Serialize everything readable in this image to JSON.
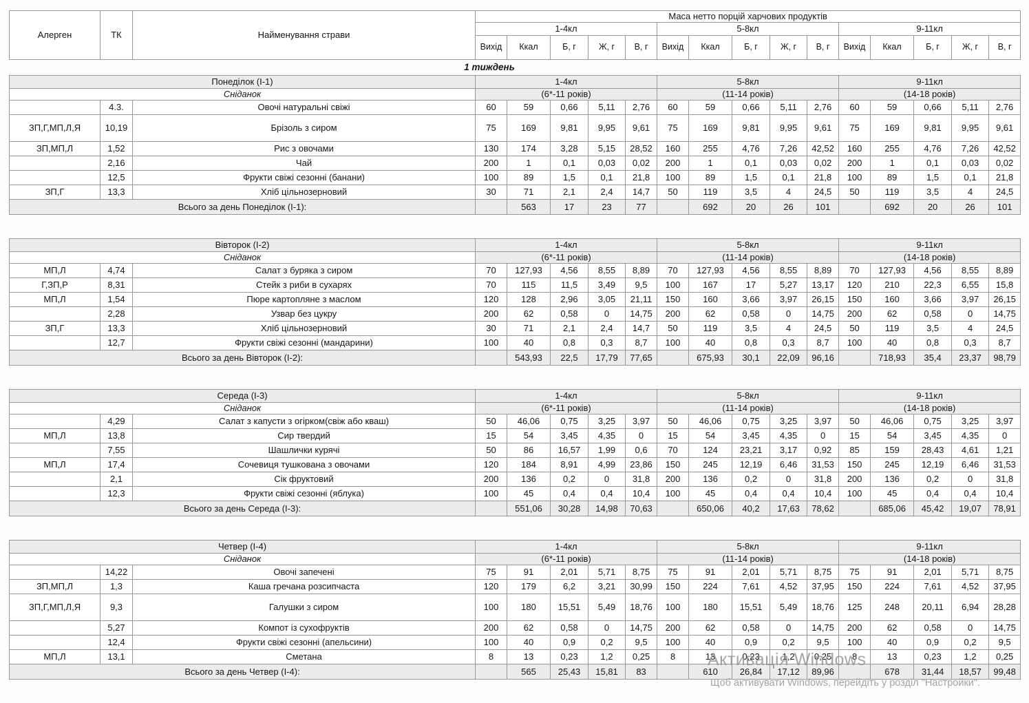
{
  "table": {
    "header": {
      "allergen": "Алерген",
      "tk": "ТК",
      "dish": "Найменування страви",
      "mass_title": "Маса нетто порцій харчових продуктів",
      "week": "1 тиждень",
      "groups": [
        {
          "klass": "1-4кл",
          "age": "(6*-11 років)"
        },
        {
          "klass": "5-8кл",
          "age": "(11-14 років)"
        },
        {
          "klass": "9-11кл",
          "age": "(14-18 років)"
        }
      ],
      "cols": [
        "Вихід",
        "Ккал",
        "Б, г",
        "Ж, г",
        "В, г"
      ]
    },
    "days": [
      {
        "name": "Понеділок (I-1)",
        "meal": "Сніданок",
        "total_label": "Всього за день Понеділок (I-1):",
        "rows": [
          {
            "a": "",
            "tk": "4.3.",
            "dish": "Овочі  натуральні свіжі",
            "g": [
              [
                "60",
                "59",
                "0,66",
                "5,11",
                "2,76"
              ],
              [
                "60",
                "59",
                "0,66",
                "5,11",
                "2,76"
              ],
              [
                "60",
                "59",
                "0,66",
                "5,11",
                "2,76"
              ]
            ]
          },
          {
            "a": "ЗП,Г,МП,Л,Я",
            "tk": "10,19",
            "dish": "Брізоль з сиром",
            "tall": true,
            "g": [
              [
                "75",
                "169",
                "9,81",
                "9,95",
                "9,61"
              ],
              [
                "75",
                "169",
                "9,81",
                "9,95",
                "9,61"
              ],
              [
                "75",
                "169",
                "9,81",
                "9,95",
                "9,61"
              ]
            ]
          },
          {
            "a": "ЗП,МП,Л",
            "tk": "1,52",
            "dish": "Рис з овочами",
            "g": [
              [
                "130",
                "174",
                "3,28",
                "5,15",
                "28,52"
              ],
              [
                "160",
                "255",
                "4,76",
                "7,26",
                "42,52"
              ],
              [
                "160",
                "255",
                "4,76",
                "7,26",
                "42,52"
              ]
            ]
          },
          {
            "a": "",
            "tk": "2,16",
            "dish": "Чай",
            "g": [
              [
                "200",
                "1",
                "0,1",
                "0,03",
                "0,02"
              ],
              [
                "200",
                "1",
                "0,1",
                "0,03",
                "0,02"
              ],
              [
                "200",
                "1",
                "0,1",
                "0,03",
                "0,02"
              ]
            ]
          },
          {
            "a": "",
            "tk": "12,5",
            "dish": "Фрукти свіжі сезонні (банани)",
            "g": [
              [
                "100",
                "89",
                "1,5",
                "0,1",
                "21,8"
              ],
              [
                "100",
                "89",
                "1,5",
                "0,1",
                "21,8"
              ],
              [
                "100",
                "89",
                "1,5",
                "0,1",
                "21,8"
              ]
            ]
          },
          {
            "a": "ЗП,Г",
            "tk": "13,3",
            "dish": "Хліб цільнозерновий",
            "g": [
              [
                "30",
                "71",
                "2,1",
                "2,4",
                "14,7"
              ],
              [
                "50",
                "119",
                "3,5",
                "4",
                "24,5"
              ],
              [
                "50",
                "119",
                "3,5",
                "4",
                "24,5"
              ]
            ]
          }
        ],
        "totals": [
          [
            "563",
            "17",
            "23",
            "77"
          ],
          [
            "692",
            "20",
            "26",
            "101"
          ],
          [
            "692",
            "20",
            "26",
            "101"
          ]
        ]
      },
      {
        "name": "Вівторок (I-2)",
        "meal": "Сніданок",
        "total_label": "Всього за день Вівторок (I-2):",
        "rows": [
          {
            "a": "МП,Л",
            "tk": "4,74",
            "dish": "Салат з буряка з сиром",
            "g": [
              [
                "70",
                "127,93",
                "4,56",
                "8,55",
                "8,89"
              ],
              [
                "70",
                "127,93",
                "4,56",
                "8,55",
                "8,89"
              ],
              [
                "70",
                "127,93",
                "4,56",
                "8,55",
                "8,89"
              ]
            ]
          },
          {
            "a": "Г,ЗП,Р",
            "tk": "8,31",
            "dish": "Стейк з риби в сухарях",
            "g": [
              [
                "70",
                "115",
                "11,5",
                "3,49",
                "9,5"
              ],
              [
                "100",
                "167",
                "17",
                "5,27",
                "13,17"
              ],
              [
                "120",
                "210",
                "22,3",
                "6,55",
                "15,8"
              ]
            ]
          },
          {
            "a": "МП,Л",
            "tk": "1,54",
            "dish": "Пюре картопляне з маслом",
            "g": [
              [
                "120",
                "128",
                "2,96",
                "3,05",
                "21,11"
              ],
              [
                "150",
                "160",
                "3,66",
                "3,97",
                "26,15"
              ],
              [
                "150",
                "160",
                "3,66",
                "3,97",
                "26,15"
              ]
            ]
          },
          {
            "a": "",
            "tk": "2,28",
            "dish": "Узвар без цукру",
            "g": [
              [
                "200",
                "62",
                "0,58",
                "0",
                "14,75"
              ],
              [
                "200",
                "62",
                "0,58",
                "0",
                "14,75"
              ],
              [
                "200",
                "62",
                "0,58",
                "0",
                "14,75"
              ]
            ]
          },
          {
            "a": "ЗП,Г",
            "tk": "13,3",
            "dish": "Хліб цільнозерновий",
            "g": [
              [
                "30",
                "71",
                "2,1",
                "2,4",
                "14,7"
              ],
              [
                "50",
                "119",
                "3,5",
                "4",
                "24,5"
              ],
              [
                "50",
                "119",
                "3,5",
                "4",
                "24,5"
              ]
            ]
          },
          {
            "a": "",
            "tk": "12,7",
            "dish": "Фрукти свіжі сезонні (мандарини)",
            "g": [
              [
                "100",
                "40",
                "0,8",
                "0,3",
                "8,7"
              ],
              [
                "100",
                "40",
                "0,8",
                "0,3",
                "8,7"
              ],
              [
                "100",
                "40",
                "0,8",
                "0,3",
                "8,7"
              ]
            ]
          }
        ],
        "totals": [
          [
            "543,93",
            "22,5",
            "17,79",
            "77,65"
          ],
          [
            "675,93",
            "30,1",
            "22,09",
            "96,16"
          ],
          [
            "718,93",
            "35,4",
            "23,37",
            "98,79"
          ]
        ]
      },
      {
        "name": "Середа (I-3)",
        "meal": "Сніданок",
        "total_label": "Всього за день Середа (I-3):",
        "rows": [
          {
            "a": "",
            "tk": "4,29",
            "dish": "Салат з капусти з огірком(свіж або кваш)",
            "g": [
              [
                "50",
                "46,06",
                "0,75",
                "3,25",
                "3,97"
              ],
              [
                "50",
                "46,06",
                "0,75",
                "3,25",
                "3,97"
              ],
              [
                "50",
                "46,06",
                "0,75",
                "3,25",
                "3,97"
              ]
            ]
          },
          {
            "a": "МП,Л",
            "tk": "13,8",
            "dish": "Сир твердий",
            "g": [
              [
                "15",
                "54",
                "3,45",
                "4,35",
                "0"
              ],
              [
                "15",
                "54",
                "3,45",
                "4,35",
                "0"
              ],
              [
                "15",
                "54",
                "3,45",
                "4,35",
                "0"
              ]
            ]
          },
          {
            "a": "",
            "tk": "7,55",
            "dish": "Шашлички курячі",
            "g": [
              [
                "50",
                "86",
                "16,57",
                "1,99",
                "0,6"
              ],
              [
                "70",
                "124",
                "23,21",
                "3,17",
                "0,92"
              ],
              [
                "85",
                "159",
                "28,43",
                "4,61",
                "1,21"
              ]
            ]
          },
          {
            "a": "МП,Л",
            "tk": "17,4",
            "dish": "Сочевиця тушкована з овочами",
            "g": [
              [
                "120",
                "184",
                "8,91",
                "4,99",
                "23,86"
              ],
              [
                "150",
                "245",
                "12,19",
                "6,46",
                "31,53"
              ],
              [
                "150",
                "245",
                "12,19",
                "6,46",
                "31,53"
              ]
            ]
          },
          {
            "a": "",
            "tk": "2,1",
            "dish": "Сік фруктовий",
            "g": [
              [
                "200",
                "136",
                "0,2",
                "0",
                "31,8"
              ],
              [
                "200",
                "136",
                "0,2",
                "0",
                "31,8"
              ],
              [
                "200",
                "136",
                "0,2",
                "0",
                "31,8"
              ]
            ]
          },
          {
            "a": "",
            "tk": "12,3",
            "dish": "Фрукти свіжі сезонні (яблука)",
            "g": [
              [
                "100",
                "45",
                "0,4",
                "0,4",
                "10,4"
              ],
              [
                "100",
                "45",
                "0,4",
                "0,4",
                "10,4"
              ],
              [
                "100",
                "45",
                "0,4",
                "0,4",
                "10,4"
              ]
            ]
          }
        ],
        "totals": [
          [
            "551,06",
            "30,28",
            "14,98",
            "70,63"
          ],
          [
            "650,06",
            "40,2",
            "17,63",
            "78,62"
          ],
          [
            "685,06",
            "45,42",
            "19,07",
            "78,91"
          ]
        ]
      },
      {
        "name": "Четвер (I-4)",
        "meal": "Сніданок",
        "total_label": "Всього за день Четвер (I-4):",
        "rows": [
          {
            "a": "",
            "tk": "14,22",
            "dish": "Овочі запечені",
            "g": [
              [
                "75",
                "91",
                "2,01",
                "5,71",
                "8,75"
              ],
              [
                "75",
                "91",
                "2,01",
                "5,71",
                "8,75"
              ],
              [
                "75",
                "91",
                "2,01",
                "5,71",
                "8,75"
              ]
            ]
          },
          {
            "a": "ЗП,МП,Л",
            "tk": "1,3",
            "dish": "Каша гречана розсипчаста",
            "g": [
              [
                "120",
                "179",
                "6,2",
                "3,21",
                "30,99"
              ],
              [
                "150",
                "224",
                "7,61",
                "4,52",
                "37,95"
              ],
              [
                "150",
                "224",
                "7,61",
                "4,52",
                "37,95"
              ]
            ]
          },
          {
            "a": "ЗП,Г,МП,Л,Я",
            "tk": "9,3",
            "dish": "Галушки з сиром",
            "tall": true,
            "g": [
              [
                "100",
                "180",
                "15,51",
                "5,49",
                "18,76"
              ],
              [
                "100",
                "180",
                "15,51",
                "5,49",
                "18,76"
              ],
              [
                "125",
                "248",
                "20,11",
                "6,94",
                "28,28"
              ]
            ]
          },
          {
            "a": "",
            "tk": "5,27",
            "dish": "Компот із сухофруктів",
            "g": [
              [
                "200",
                "62",
                "0,58",
                "0",
                "14,75"
              ],
              [
                "200",
                "62",
                "0,58",
                "0",
                "14,75"
              ],
              [
                "200",
                "62",
                "0,58",
                "0",
                "14,75"
              ]
            ]
          },
          {
            "a": "",
            "tk": "12,4",
            "dish": "Фрукти свіжі сезонні (апельсини)",
            "g": [
              [
                "100",
                "40",
                "0,9",
                "0,2",
                "9,5"
              ],
              [
                "100",
                "40",
                "0,9",
                "0,2",
                "9,5"
              ],
              [
                "100",
                "40",
                "0,9",
                "0,2",
                "9,5"
              ]
            ]
          },
          {
            "a": "МП,Л",
            "tk": "13,1",
            "dish": "Сметана",
            "g": [
              [
                "8",
                "13",
                "0,23",
                "1,2",
                "0,25"
              ],
              [
                "8",
                "13",
                "0,23",
                "1,2",
                "0,25"
              ],
              [
                "8",
                "13",
                "0,23",
                "1,2",
                "0,25"
              ]
            ]
          }
        ],
        "totals": [
          [
            "565",
            "25,43",
            "15,81",
            "83"
          ],
          [
            "610",
            "26,84",
            "17,12",
            "89,96"
          ],
          [
            "678",
            "31,44",
            "18,57",
            "99,48"
          ]
        ]
      }
    ]
  },
  "watermark": {
    "line1": "Активація Windows",
    "line2": "Щоб активувати Windows, перейдіть у розділ \"Настройки\"."
  }
}
